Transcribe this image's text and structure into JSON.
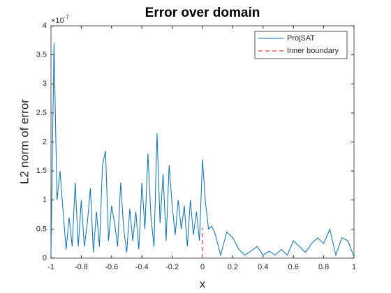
{
  "chart_data": {
    "type": "line",
    "title": "Error over domain",
    "x_label": "x",
    "y_label": "L2 norm of error",
    "y_multiplier": {
      "base": "×10",
      "exponent": "-7"
    },
    "xlim": [
      -1,
      1
    ],
    "ylim": [
      0,
      4
    ],
    "xticks": [
      -1,
      -0.8,
      -0.6,
      -0.4,
      -0.2,
      0,
      0.2,
      0.4,
      0.6,
      0.8,
      1
    ],
    "yticks": [
      0,
      0.5,
      1,
      1.5,
      2,
      2.5,
      3,
      3.5,
      4
    ],
    "grid": false,
    "legend": "northeast",
    "series": [
      {
        "name": "ProjSAT",
        "color": "#0072bd",
        "style": "solid",
        "x": [
          -1,
          -0.98,
          -0.96,
          -0.94,
          -0.92,
          -0.9,
          -0.88,
          -0.86,
          -0.84,
          -0.82,
          -0.8,
          -0.78,
          -0.76,
          -0.74,
          -0.72,
          -0.7,
          -0.68,
          -0.66,
          -0.64,
          -0.62,
          -0.6,
          -0.58,
          -0.56,
          -0.54,
          -0.52,
          -0.5,
          -0.48,
          -0.46,
          -0.44,
          -0.42,
          -0.4,
          -0.38,
          -0.36,
          -0.34,
          -0.32,
          -0.3,
          -0.28,
          -0.26,
          -0.24,
          -0.22,
          -0.2,
          -0.18,
          -0.16,
          -0.14,
          -0.12,
          -0.1,
          -0.08,
          -0.06,
          -0.04,
          -0.02,
          0,
          0.02,
          0.04,
          0.06,
          0.08,
          0.12,
          0.16,
          0.2,
          0.24,
          0.28,
          0.32,
          0.36,
          0.4,
          0.44,
          0.48,
          0.52,
          0.56,
          0.6,
          0.64,
          0.68,
          0.72,
          0.76,
          0.8,
          0.84,
          0.88,
          0.92,
          0.96,
          1
        ],
        "values": [
          0.05,
          3.7,
          1.0,
          1.5,
          0.8,
          0.15,
          0.7,
          0.2,
          1.3,
          0.2,
          1.0,
          0.2,
          0.6,
          1.2,
          0.1,
          0.8,
          0.2,
          1.6,
          1.85,
          0.3,
          0.9,
          0.6,
          0.2,
          1.3,
          0.5,
          0.1,
          0.85,
          0.3,
          0.8,
          0.15,
          1.3,
          0.5,
          1.8,
          0.7,
          0.2,
          2.15,
          0.6,
          1.45,
          0.3,
          1.6,
          0.9,
          0.4,
          1.0,
          0.5,
          0.9,
          0.2,
          1.0,
          0.4,
          0.8,
          0.3,
          1.7,
          0.95,
          0.5,
          0.55,
          0.45,
          0.05,
          0.45,
          0.35,
          0.15,
          0.05,
          0.12,
          0.2,
          0.05,
          0.12,
          0.05,
          0.15,
          0.05,
          0.3,
          0.2,
          0.1,
          0.25,
          0.35,
          0.25,
          0.5,
          0.05,
          0.35,
          0.3,
          0.02
        ]
      },
      {
        "name": "Inner boundary",
        "color": "#ff0000",
        "style": "dashed",
        "x": [
          0,
          0
        ],
        "values": [
          0,
          0.52
        ]
      }
    ]
  }
}
